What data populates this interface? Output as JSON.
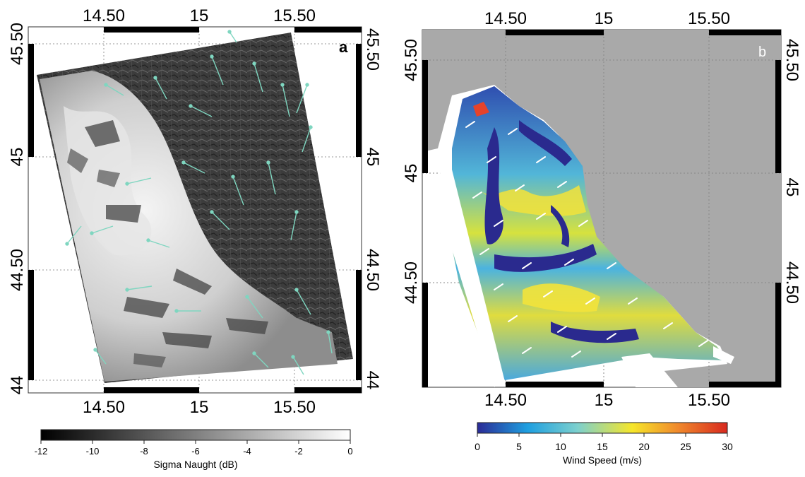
{
  "panels": [
    {
      "id": "a",
      "letter": "a",
      "top_ticks": [
        "14.50",
        "15",
        "15.50"
      ],
      "bottom_ticks": [
        "14.50",
        "15",
        "15.50"
      ],
      "left_ticks": [
        "45.50",
        "45",
        "44.50",
        "44"
      ],
      "right_ticks": [
        "45.50",
        "45",
        "44.50",
        "44"
      ],
      "colorbar": {
        "title": "Sigma Naught (dB)",
        "ticks": [
          "-12",
          "-10",
          "-8",
          "-6",
          "-4",
          "-2",
          "0"
        ],
        "min": -12,
        "max": 0,
        "colors": [
          "#000000",
          "#ffffff"
        ]
      },
      "vector_color": "#7fd6c0"
    },
    {
      "id": "b",
      "letter": "b",
      "top_ticks": [
        "14.50",
        "15",
        "15.50"
      ],
      "bottom_ticks": [
        "14.50",
        "15",
        "15.50"
      ],
      "left_ticks": [
        "45.50",
        "45",
        "44.50"
      ],
      "right_ticks": [
        "45.50",
        "45",
        "44.50"
      ],
      "colorbar": {
        "title": "Wind Speed (m/s)",
        "ticks": [
          "0",
          "5",
          "10",
          "15",
          "20",
          "25",
          "30"
        ],
        "min": 0,
        "max": 30,
        "colors": [
          "#2b2b96",
          "#1e9fe0",
          "#7cd0ce",
          "#f6e62a",
          "#f08a2c",
          "#d8291f"
        ]
      },
      "land_color": "#a9a9a9",
      "vector_color": "#ffffff"
    }
  ]
}
